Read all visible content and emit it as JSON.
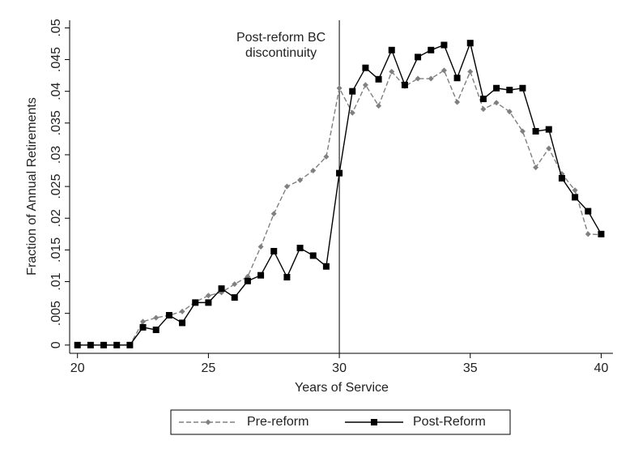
{
  "chart_data": {
    "type": "line",
    "xlabel": "Years of Service",
    "ylabel": "Fraction of Annual Retirements",
    "x": [
      20,
      20.5,
      21,
      21.5,
      22,
      22.5,
      23,
      23.5,
      24,
      24.5,
      25,
      25.5,
      26,
      26.5,
      27,
      27.5,
      28,
      28.5,
      29,
      29.5,
      30,
      30.5,
      31,
      31.5,
      32,
      32.5,
      33,
      33.5,
      34,
      34.5,
      35,
      35.5,
      36,
      36.5,
      37,
      37.5,
      38,
      38.5,
      39,
      39.5,
      40
    ],
    "series": [
      {
        "name": "Pre-reform",
        "color": "#808080",
        "dash": true,
        "marker": "diamond",
        "values": [
          0,
          0,
          0,
          0,
          0,
          0.0037,
          0.0043,
          0.0047,
          0.0053,
          0.0068,
          0.0078,
          0.0083,
          0.0096,
          0.0108,
          0.0155,
          0.0207,
          0.025,
          0.026,
          0.0275,
          0.0297,
          0.0405,
          0.0366,
          0.041,
          0.0377,
          0.0431,
          0.0408,
          0.042,
          0.042,
          0.0433,
          0.0383,
          0.0431,
          0.0372,
          0.0382,
          0.0368,
          0.0337,
          0.028,
          0.031,
          0.027,
          0.0244,
          0.0175,
          0.0174
        ]
      },
      {
        "name": "Post-Reform",
        "color": "#000000",
        "dash": false,
        "marker": "square",
        "values": [
          0,
          0,
          0,
          0,
          0,
          0.0028,
          0.0024,
          0.0047,
          0.0035,
          0.0067,
          0.0067,
          0.0089,
          0.0075,
          0.0101,
          0.011,
          0.0148,
          0.0107,
          0.0153,
          0.0141,
          0.0124,
          0.0271,
          0.04,
          0.0437,
          0.0419,
          0.0465,
          0.041,
          0.0454,
          0.0465,
          0.0473,
          0.0421,
          0.0476,
          0.0388,
          0.0405,
          0.0402,
          0.0405,
          0.0337,
          0.034,
          0.0263,
          0.0233,
          0.0211,
          0.0175
        ]
      }
    ],
    "vline": 30,
    "annotation": [
      "Post-reform BC",
      "discontinuity"
    ],
    "xlim": [
      19.7,
      40.45
    ],
    "ylim": [
      -0.0013,
      0.0512
    ],
    "xticks": [
      20,
      25,
      30,
      35,
      40
    ],
    "yticks": [
      0,
      {
        "value": 0.005,
        "label": ".005"
      },
      {
        "value": 0.01,
        "label": ".01"
      },
      {
        "value": 0.015,
        "label": ".015"
      },
      {
        "value": 0.02,
        "label": ".02"
      },
      {
        "value": 0.025,
        "label": ".025"
      },
      {
        "value": 0.03,
        "label": ".03"
      },
      {
        "value": 0.035,
        "label": ".035"
      },
      {
        "value": 0.04,
        "label": ".04"
      },
      {
        "value": 0.045,
        "label": ".045"
      },
      {
        "value": 0.05,
        "label": ".05"
      }
    ],
    "legend": "bottom"
  }
}
